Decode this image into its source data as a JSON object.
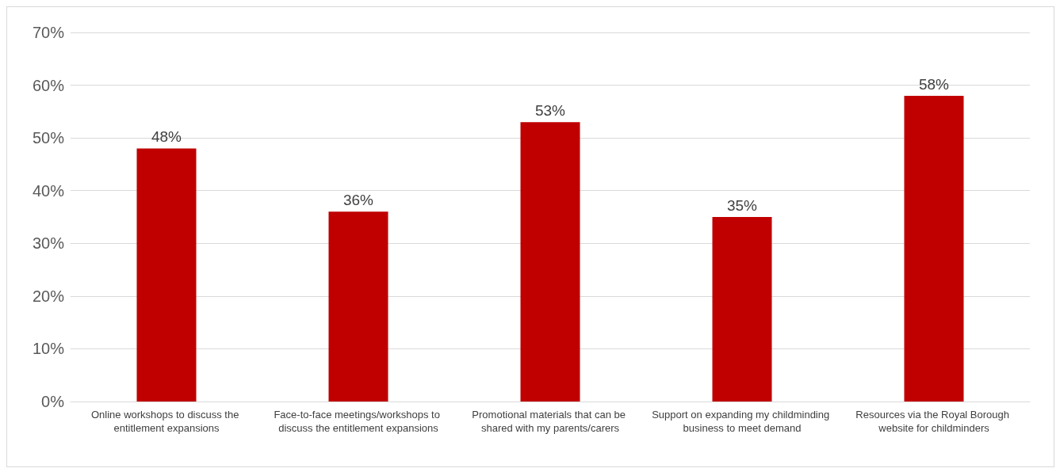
{
  "chart_data": {
    "type": "bar",
    "categories": [
      "Online workshops to discuss the entitlement expansions",
      "Face-to-face meetings/workshops to discuss the entitlement expansions",
      "Promotional materials that can be shared with my parents/carers",
      "Support on expanding my childminding business to meet demand",
      "Resources via the Royal Borough website for childminders"
    ],
    "values": [
      48,
      36,
      53,
      35,
      58
    ],
    "value_labels": [
      "48%",
      "36%",
      "53%",
      "35%",
      "58%"
    ],
    "color": "#c00000",
    "ylim": [
      0,
      70
    ],
    "yticks": [
      {
        "value": 0,
        "label": "0%"
      },
      {
        "value": 10,
        "label": "10%"
      },
      {
        "value": 20,
        "label": "20%"
      },
      {
        "value": 30,
        "label": "30%"
      },
      {
        "value": 40,
        "label": "40%"
      },
      {
        "value": 50,
        "label": "50%"
      },
      {
        "value": 60,
        "label": "60%"
      },
      {
        "value": 70,
        "label": "70%"
      }
    ],
    "grid": "y"
  }
}
